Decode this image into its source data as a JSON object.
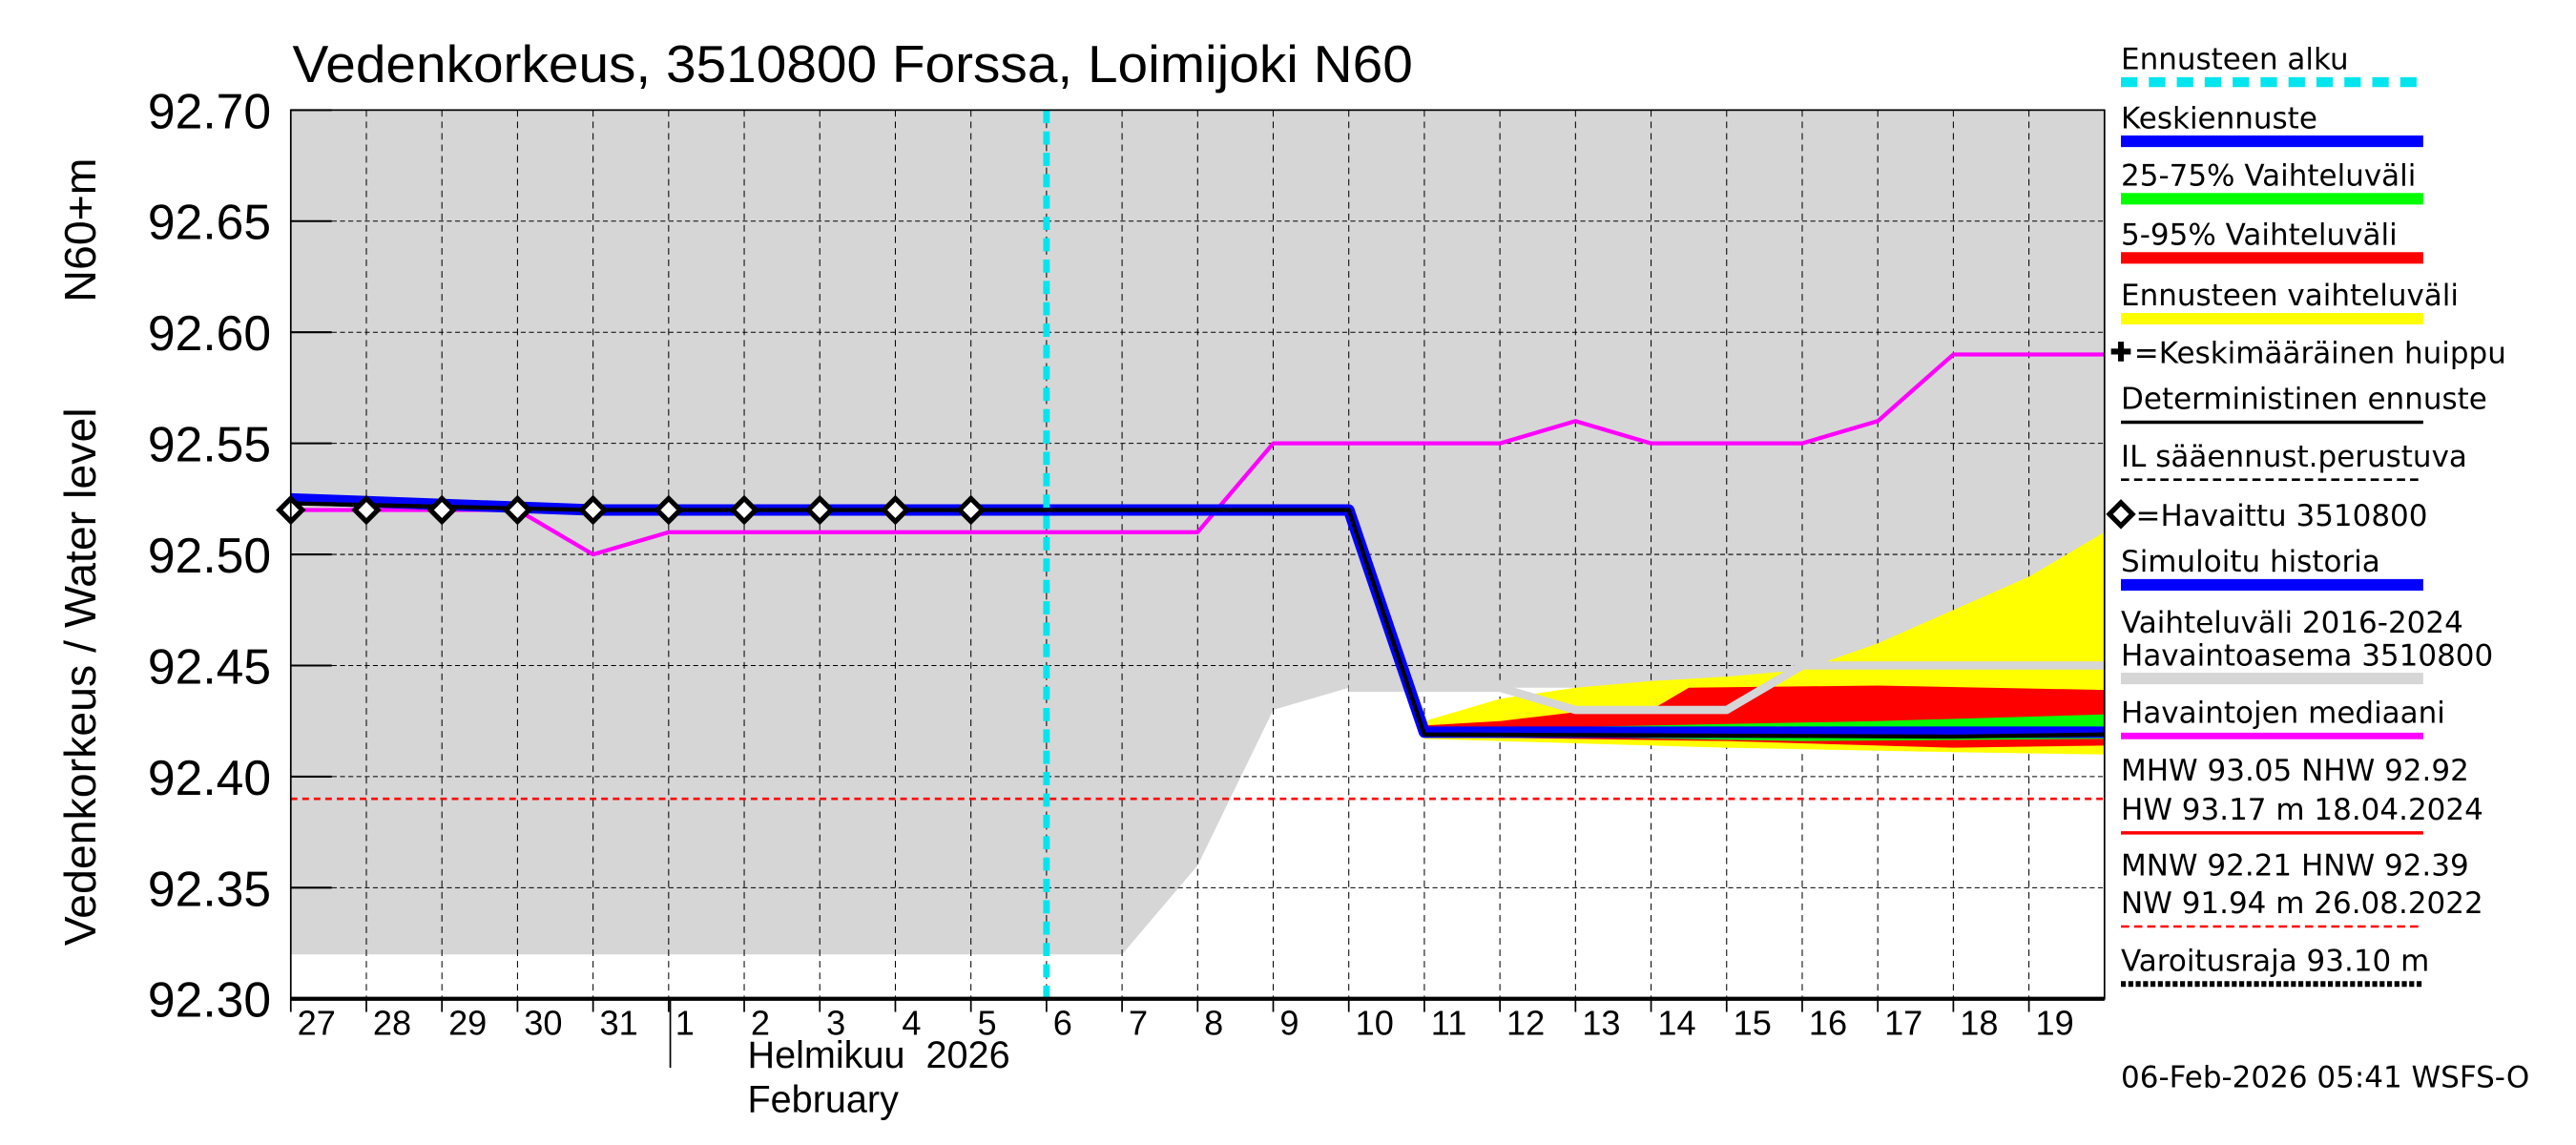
{
  "chart_data": {
    "type": "area",
    "title": "Vedenkorkeus, 3510800 Forssa, Loimijoki N60",
    "ylabel": "Vedenkorkeus / Water level",
    "yunit": "N60+m",
    "ylim": [
      92.3,
      92.7
    ],
    "yticks": [
      "92.70",
      "92.65",
      "92.60",
      "92.55",
      "92.50",
      "92.45",
      "92.40",
      "92.35",
      "92.30"
    ],
    "x_range": [
      "2026-01-27",
      "2026-02-20"
    ],
    "day_labels": [
      "27",
      "28",
      "29",
      "30",
      "31",
      "1",
      "2",
      "3",
      "4",
      "5",
      "6",
      "7",
      "8",
      "9",
      "10",
      "11",
      "12",
      "13",
      "14",
      "15",
      "16",
      "17",
      "18",
      "19"
    ],
    "month_label": "Helmikuu  2026",
    "month_label_en": "February",
    "grid": true,
    "forecast_start": "2026-02-06",
    "hnw_line": 92.39,
    "series": [
      {
        "name": "Vaihteluväli 2016-2024",
        "kind": "band",
        "color": "#d6d6d6",
        "upper": [
          [
            "2026-01-27",
            92.7
          ],
          [
            "2026-02-20",
            92.7
          ]
        ],
        "lower": [
          [
            "2026-01-27",
            92.32
          ],
          [
            "2026-02-07",
            92.32
          ],
          [
            "2026-02-08",
            92.36
          ],
          [
            "2026-02-09",
            92.43
          ],
          [
            "2026-02-10",
            92.44
          ],
          [
            "2026-02-20",
            92.44
          ]
        ]
      },
      {
        "name": "Ennusteen vaihteluväli",
        "kind": "band",
        "color": "#ffff00",
        "upper": [
          [
            "2026-02-11",
            92.425
          ],
          [
            "2026-02-12",
            92.435
          ],
          [
            "2026-02-13",
            92.44
          ],
          [
            "2026-02-14",
            92.443
          ],
          [
            "2026-02-15",
            92.445
          ],
          [
            "2026-02-16",
            92.448
          ],
          [
            "2026-02-17",
            92.46
          ],
          [
            "2026-02-18",
            92.475
          ],
          [
            "2026-02-19",
            92.49
          ],
          [
            "2026-02-20",
            92.51
          ]
        ],
        "lower": [
          [
            "2026-02-11",
            92.417
          ],
          [
            "2026-02-15",
            92.413
          ],
          [
            "2026-02-18",
            92.411
          ],
          [
            "2026-02-20",
            92.41
          ]
        ]
      },
      {
        "name": "5-95% Vaihteluväli",
        "kind": "band",
        "color": "#ff0000",
        "upper": [
          [
            "2026-02-11",
            92.423
          ],
          [
            "2026-02-12",
            92.425
          ],
          [
            "2026-02-13",
            92.429
          ],
          [
            "2026-02-14",
            92.43
          ],
          [
            "2026-02-14.5",
            92.44
          ],
          [
            "2026-02-17",
            92.441
          ],
          [
            "2026-02-20",
            92.439
          ]
        ],
        "lower": [
          [
            "2026-02-11",
            92.418
          ],
          [
            "2026-02-15",
            92.416
          ],
          [
            "2026-02-18",
            92.413
          ],
          [
            "2026-02-20",
            92.414
          ]
        ]
      },
      {
        "name": "25-75% Vaihteluväli",
        "kind": "band",
        "color": "#00ff00",
        "upper": [
          [
            "2026-02-11",
            92.421
          ],
          [
            "2026-02-14",
            92.423
          ],
          [
            "2026-02-17",
            92.425
          ],
          [
            "2026-02-20",
            92.428
          ]
        ],
        "lower": [
          [
            "2026-02-11",
            92.419
          ],
          [
            "2026-02-16",
            92.416
          ],
          [
            "2026-02-20",
            92.417
          ]
        ]
      },
      {
        "name": "Havaintoasema 3510800",
        "kind": "line",
        "color": "#d6d6d6",
        "width": 5,
        "points": [
          [
            "2026-02-10",
            92.44
          ],
          [
            "2026-02-12",
            92.44
          ],
          [
            "2026-02-13",
            92.43
          ],
          [
            "2026-02-15",
            92.43
          ],
          [
            "2026-02-16",
            92.45
          ],
          [
            "2026-02-20",
            92.45
          ]
        ]
      },
      {
        "name": "Havaintojen mediaani",
        "kind": "line",
        "color": "#ff00ff",
        "width": 2.5,
        "points": [
          [
            "2026-01-27",
            92.52
          ],
          [
            "2026-01-30",
            92.52
          ],
          [
            "2026-01-31",
            92.5
          ],
          [
            "2026-02-01",
            92.51
          ],
          [
            "2026-02-08",
            92.51
          ],
          [
            "2026-02-09",
            92.55
          ],
          [
            "2026-02-12",
            92.55
          ],
          [
            "2026-02-13",
            92.56
          ],
          [
            "2026-02-14",
            92.55
          ],
          [
            "2026-02-16",
            92.55
          ],
          [
            "2026-02-17",
            92.56
          ],
          [
            "2026-02-18",
            92.59
          ],
          [
            "2026-02-20",
            92.59
          ]
        ]
      },
      {
        "name": "Simuloitu historia",
        "kind": "line",
        "color": "#0000ff",
        "width": 7,
        "points": [
          [
            "2026-01-27",
            92.525
          ],
          [
            "2026-01-31",
            92.52
          ],
          [
            "2026-02-10",
            92.52
          ],
          [
            "2026-02-11",
            92.42
          ],
          [
            "2026-02-20",
            92.42
          ]
        ]
      },
      {
        "name": "Keskiennuste",
        "kind": "line",
        "color": "#0000ff",
        "width": 5,
        "points": [
          [
            "2026-02-11",
            92.42
          ],
          [
            "2026-02-20",
            92.42
          ]
        ]
      },
      {
        "name": "Deterministinen ennuste",
        "kind": "line",
        "color": "#000000",
        "width": 2.5,
        "points": [
          [
            "2026-01-27",
            92.523
          ],
          [
            "2026-01-31",
            92.52
          ],
          [
            "2026-02-10",
            92.52
          ],
          [
            "2026-02-11",
            92.419
          ],
          [
            "2026-02-18",
            92.418
          ],
          [
            "2026-02-20",
            92.419
          ]
        ]
      },
      {
        "name": "Havaittu 3510800",
        "kind": "markers",
        "color": "#000000",
        "points": [
          [
            "2026-01-27",
            92.52
          ],
          [
            "2026-01-28",
            92.52
          ],
          [
            "2026-01-29",
            92.52
          ],
          [
            "2026-01-30",
            92.52
          ],
          [
            "2026-01-31",
            92.52
          ],
          [
            "2026-02-01",
            92.52
          ],
          [
            "2026-02-02",
            92.52
          ],
          [
            "2026-02-03",
            92.52
          ],
          [
            "2026-02-04",
            92.52
          ],
          [
            "2026-02-05",
            92.52
          ]
        ]
      }
    ]
  },
  "legend": {
    "position": "right",
    "items": [
      {
        "label": "Ennusteen alku",
        "style": "dashed",
        "color": "#00e5ee"
      },
      {
        "label": "Keskiennuste",
        "style": "solid",
        "color": "#0000ff"
      },
      {
        "label": "25-75% Vaihteluväli",
        "style": "solid",
        "color": "#00ff00"
      },
      {
        "label": "5-95% Vaihteluväli",
        "style": "solid",
        "color": "#ff0000"
      },
      {
        "label": "Ennusteen vaihteluväli",
        "style": "solid",
        "color": "#ffff00"
      },
      {
        "label": "=Keskimääräinen huippu",
        "style": "plus",
        "color": "#000000"
      },
      {
        "label": "Deterministinen ennuste",
        "style": "thin",
        "color": "#000000"
      },
      {
        "label": "IL sääennust.perustuva",
        "style": "thindash",
        "color": "#000000"
      },
      {
        "label": "=Havaittu 3510800",
        "style": "diamond",
        "color": "#000000"
      },
      {
        "label": "Simuloitu historia",
        "style": "solid",
        "color": "#0000ff"
      },
      {
        "label": "Vaihteluväli 2016-2024",
        "style": "none",
        "color": "#000000"
      },
      {
        "label": "Havaintoasema 3510800",
        "style": "solid",
        "color": "#d6d6d6"
      },
      {
        "label": "Havaintojen mediaani",
        "style": "mid",
        "color": "#ff00ff"
      },
      {
        "label": "MHW  93.05 NHW  92.92",
        "style": "none",
        "color": "#000000"
      },
      {
        "label": "HW  93.17 m 18.04.2024",
        "style": "thin",
        "color": "#ff0000"
      },
      {
        "label": "MNW  92.21 HNW  92.39",
        "style": "none",
        "color": "#000000"
      },
      {
        "label": "NW  91.94 m 26.08.2022",
        "style": "thindash",
        "color": "#ff0000"
      },
      {
        "label": "Varoitusraja 93.10 m",
        "style": "dotted",
        "color": "#000000"
      }
    ]
  },
  "footer": {
    "timestamp": "06-Feb-2026 05:41 WSFS-O"
  }
}
